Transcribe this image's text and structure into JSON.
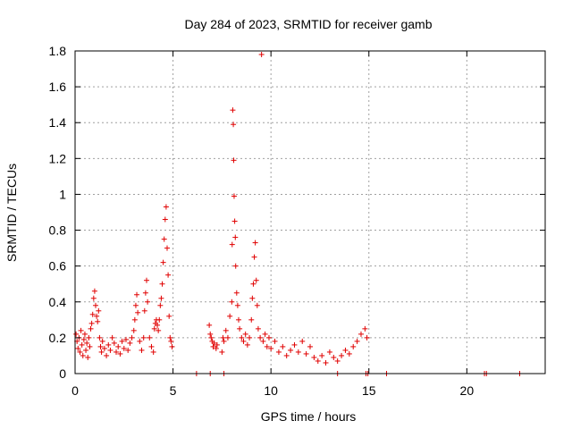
{
  "chart_data": {
    "type": "scatter",
    "title": "Day 284 of 2023, SRMTID for receiver gamb",
    "xlabel": "GPS time / hours",
    "ylabel": "SRMTID / TECUs",
    "xlim": [
      0,
      24
    ],
    "ylim": [
      0,
      1.8
    ],
    "x_ticks": [
      0,
      5,
      10,
      15,
      20
    ],
    "x_tick_labels": [
      "0",
      "5",
      "10",
      "15",
      "20"
    ],
    "y_ticks": [
      0,
      0.2,
      0.4,
      0.6,
      0.8,
      1,
      1.2,
      1.4,
      1.6,
      1.8
    ],
    "y_tick_labels": [
      "0",
      "0.2",
      "0.4",
      "0.6",
      "0.8",
      "1",
      "1.2",
      "1.4",
      "1.6",
      "1.8"
    ],
    "grid": true,
    "marker": "+",
    "color": "#e00000",
    "series": [
      {
        "name": "SRMTID",
        "points": [
          [
            0.05,
            0.22
          ],
          [
            0.1,
            0.18
          ],
          [
            0.15,
            0.14
          ],
          [
            0.2,
            0.2
          ],
          [
            0.25,
            0.12
          ],
          [
            0.3,
            0.24
          ],
          [
            0.35,
            0.16
          ],
          [
            0.4,
            0.1
          ],
          [
            0.45,
            0.19
          ],
          [
            0.5,
            0.22
          ],
          [
            0.55,
            0.13
          ],
          [
            0.6,
            0.17
          ],
          [
            0.65,
            0.09
          ],
          [
            0.7,
            0.2
          ],
          [
            0.75,
            0.15
          ],
          [
            0.8,
            0.25
          ],
          [
            0.85,
            0.28
          ],
          [
            0.9,
            0.33
          ],
          [
            0.95,
            0.42
          ],
          [
            1.0,
            0.46
          ],
          [
            1.05,
            0.38
          ],
          [
            1.1,
            0.32
          ],
          [
            1.15,
            0.29
          ],
          [
            1.2,
            0.35
          ],
          [
            1.25,
            0.2
          ],
          [
            1.3,
            0.15
          ],
          [
            1.35,
            0.12
          ],
          [
            1.4,
            0.18
          ],
          [
            1.5,
            0.14
          ],
          [
            1.6,
            0.1
          ],
          [
            1.7,
            0.16
          ],
          [
            1.8,
            0.13
          ],
          [
            1.9,
            0.2
          ],
          [
            2.0,
            0.17
          ],
          [
            2.1,
            0.12
          ],
          [
            2.2,
            0.15
          ],
          [
            2.3,
            0.11
          ],
          [
            2.4,
            0.18
          ],
          [
            2.5,
            0.14
          ],
          [
            2.6,
            0.19
          ],
          [
            2.7,
            0.13
          ],
          [
            2.8,
            0.17
          ],
          [
            2.9,
            0.2
          ],
          [
            3.0,
            0.24
          ],
          [
            3.05,
            0.3
          ],
          [
            3.1,
            0.38
          ],
          [
            3.15,
            0.44
          ],
          [
            3.2,
            0.34
          ],
          [
            3.3,
            0.18
          ],
          [
            3.4,
            0.13
          ],
          [
            3.5,
            0.2
          ],
          [
            3.55,
            0.35
          ],
          [
            3.6,
            0.45
          ],
          [
            3.65,
            0.52
          ],
          [
            3.7,
            0.4
          ],
          [
            3.8,
            0.2
          ],
          [
            3.9,
            0.15
          ],
          [
            4.0,
            0.12
          ],
          [
            4.05,
            0.25
          ],
          [
            4.1,
            0.28
          ],
          [
            4.15,
            0.3
          ],
          [
            4.2,
            0.27
          ],
          [
            4.25,
            0.24
          ],
          [
            4.3,
            0.3
          ],
          [
            4.35,
            0.38
          ],
          [
            4.4,
            0.42
          ],
          [
            4.45,
            0.5
          ],
          [
            4.5,
            0.62
          ],
          [
            4.55,
            0.75
          ],
          [
            4.6,
            0.86
          ],
          [
            4.65,
            0.93
          ],
          [
            4.7,
            0.7
          ],
          [
            4.75,
            0.55
          ],
          [
            4.8,
            0.32
          ],
          [
            4.85,
            0.2
          ],
          [
            4.9,
            0.18
          ],
          [
            4.95,
            0.15
          ],
          [
            6.85,
            0.27
          ],
          [
            6.9,
            0.22
          ],
          [
            6.95,
            0.2
          ],
          [
            7.0,
            0.18
          ],
          [
            7.05,
            0.15
          ],
          [
            7.1,
            0.17
          ],
          [
            7.2,
            0.14
          ],
          [
            7.25,
            0.16
          ],
          [
            7.5,
            0.12
          ],
          [
            7.55,
            0.2
          ],
          [
            7.6,
            0.18
          ],
          [
            7.7,
            0.24
          ],
          [
            7.8,
            0.2
          ],
          [
            7.9,
            0.32
          ],
          [
            8.0,
            0.4
          ],
          [
            8.02,
            0.72
          ],
          [
            8.05,
            1.47
          ],
          [
            8.08,
            1.39
          ],
          [
            8.1,
            1.19
          ],
          [
            8.12,
            0.99
          ],
          [
            8.15,
            0.85
          ],
          [
            8.18,
            0.76
          ],
          [
            8.2,
            0.6
          ],
          [
            8.25,
            0.45
          ],
          [
            8.3,
            0.38
          ],
          [
            8.35,
            0.3
          ],
          [
            8.4,
            0.25
          ],
          [
            8.5,
            0.2
          ],
          [
            8.6,
            0.18
          ],
          [
            8.7,
            0.22
          ],
          [
            8.8,
            0.16
          ],
          [
            8.9,
            0.2
          ],
          [
            9.0,
            0.3
          ],
          [
            9.05,
            0.42
          ],
          [
            9.1,
            0.5
          ],
          [
            9.15,
            0.65
          ],
          [
            9.2,
            0.73
          ],
          [
            9.25,
            0.52
          ],
          [
            9.3,
            0.38
          ],
          [
            9.35,
            0.25
          ],
          [
            9.45,
            0.2
          ],
          [
            9.52,
            1.78
          ],
          [
            9.6,
            0.18
          ],
          [
            9.7,
            0.22
          ],
          [
            9.8,
            0.15
          ],
          [
            9.9,
            0.2
          ],
          [
            10.0,
            0.14
          ],
          [
            10.2,
            0.18
          ],
          [
            10.4,
            0.12
          ],
          [
            10.6,
            0.15
          ],
          [
            10.8,
            0.1
          ],
          [
            11.0,
            0.13
          ],
          [
            11.2,
            0.16
          ],
          [
            11.4,
            0.12
          ],
          [
            11.6,
            0.18
          ],
          [
            11.8,
            0.11
          ],
          [
            12.0,
            0.15
          ],
          [
            12.2,
            0.09
          ],
          [
            12.4,
            0.07
          ],
          [
            12.6,
            0.1
          ],
          [
            12.8,
            0.06
          ],
          [
            13.0,
            0.12
          ],
          [
            13.2,
            0.09
          ],
          [
            13.4,
            0.07
          ],
          [
            13.6,
            0.1
          ],
          [
            13.8,
            0.13
          ],
          [
            14.0,
            0.11
          ],
          [
            14.2,
            0.15
          ],
          [
            14.4,
            0.18
          ],
          [
            14.6,
            0.22
          ],
          [
            14.8,
            0.25
          ],
          [
            14.9,
            0.2
          ],
          [
            6.2,
            0.0
          ],
          [
            6.9,
            0.0
          ],
          [
            7.6,
            0.0
          ],
          [
            13.4,
            0.0
          ],
          [
            14.85,
            0.0
          ],
          [
            14.95,
            0.0
          ],
          [
            15.9,
            0.0
          ],
          [
            20.9,
            0.0
          ],
          [
            21.0,
            0.0
          ],
          [
            22.7,
            0.0
          ]
        ]
      }
    ]
  }
}
